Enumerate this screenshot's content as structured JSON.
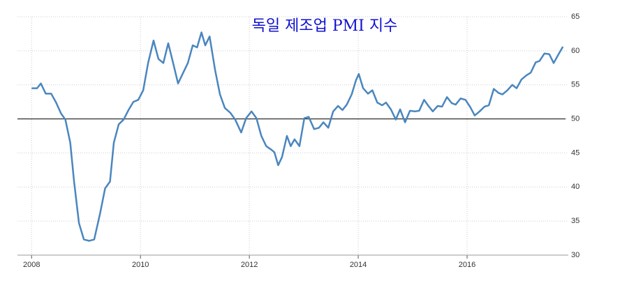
{
  "chart_data": {
    "type": "line",
    "title": "독일 제조업 PMI 지수",
    "x": [
      2008.0,
      2008.1,
      2008.17,
      2008.26,
      2008.36,
      2008.45,
      2008.54,
      2008.62,
      2008.71,
      2008.78,
      2008.87,
      2008.96,
      2009.06,
      2009.15,
      2009.26,
      2009.35,
      2009.44,
      2009.51,
      2009.6,
      2009.69,
      2009.78,
      2009.87,
      2009.96,
      2010.05,
      2010.14,
      2010.24,
      2010.33,
      2010.42,
      2010.51,
      2010.6,
      2010.69,
      2010.78,
      2010.87,
      2010.96,
      2011.04,
      2011.12,
      2011.19,
      2011.27,
      2011.37,
      2011.46,
      2011.55,
      2011.65,
      2011.74,
      2011.85,
      2011.94,
      2012.04,
      2012.13,
      2012.22,
      2012.31,
      2012.4,
      2012.46,
      2012.53,
      2012.6,
      2012.69,
      2012.76,
      2012.83,
      2012.92,
      2013.01,
      2013.09,
      2013.19,
      2013.28,
      2013.36,
      2013.45,
      2013.54,
      2013.63,
      2013.71,
      2013.79,
      2013.88,
      2013.96,
      2014.01,
      2014.09,
      2014.18,
      2014.26,
      2014.35,
      2014.44,
      2014.51,
      2014.6,
      2014.69,
      2014.77,
      2014.86,
      2014.95,
      2015.04,
      2015.12,
      2015.21,
      2015.29,
      2015.37,
      2015.46,
      2015.54,
      2015.63,
      2015.72,
      2015.79,
      2015.88,
      2015.97,
      2016.06,
      2016.14,
      2016.23,
      2016.32,
      2016.4,
      2016.49,
      2016.58,
      2016.65,
      2016.74,
      2016.83,
      2016.91,
      2017.0,
      2017.09,
      2017.17,
      2017.26,
      2017.33,
      2017.42,
      2017.51,
      2017.59,
      2017.68,
      2017.76
    ],
    "series": [
      {
        "color": "#4a86be",
        "values": [
          54.5,
          54.5,
          55.2,
          53.7,
          53.7,
          52.4,
          50.8,
          49.9,
          46.5,
          40.8,
          34.7,
          32.3,
          32.1,
          32.3,
          36.2,
          39.8,
          40.8,
          46.5,
          49.2,
          49.9,
          51.3,
          52.5,
          52.8,
          54.2,
          58.2,
          61.5,
          58.8,
          58.2,
          61.1,
          58.2,
          55.2,
          56.7,
          58.2,
          60.8,
          60.5,
          62.7,
          60.8,
          62.1,
          57.2,
          53.6,
          51.6,
          50.9,
          49.9,
          48.0,
          50.1,
          51.1,
          50.1,
          47.5,
          46.0,
          45.5,
          45.1,
          43.2,
          44.4,
          47.5,
          46.0,
          47.0,
          46.0,
          50.1,
          50.3,
          48.5,
          48.7,
          49.5,
          48.7,
          51.1,
          51.9,
          51.3,
          52.1,
          53.6,
          55.7,
          56.6,
          54.5,
          53.7,
          54.2,
          52.4,
          52.0,
          52.4,
          51.4,
          49.9,
          51.4,
          49.5,
          51.2,
          51.1,
          51.2,
          52.8,
          51.9,
          51.1,
          51.9,
          51.8,
          53.2,
          52.3,
          52.1,
          53.0,
          52.8,
          51.7,
          50.5,
          51.1,
          51.8,
          52.0,
          54.4,
          53.8,
          53.6,
          54.2,
          55.0,
          54.5,
          55.8,
          56.4,
          56.8,
          58.3,
          58.5,
          59.6,
          59.5,
          58.2,
          59.5,
          60.6
        ]
      }
    ],
    "xlim": [
      2007.74,
      2017.86
    ],
    "xticks": [
      2008,
      2010,
      2012,
      2014,
      2016
    ],
    "ylim": [
      30,
      65
    ],
    "yticks": [
      30,
      35,
      40,
      45,
      50,
      55,
      60,
      65
    ],
    "grid": true,
    "reference_line": 50
  }
}
